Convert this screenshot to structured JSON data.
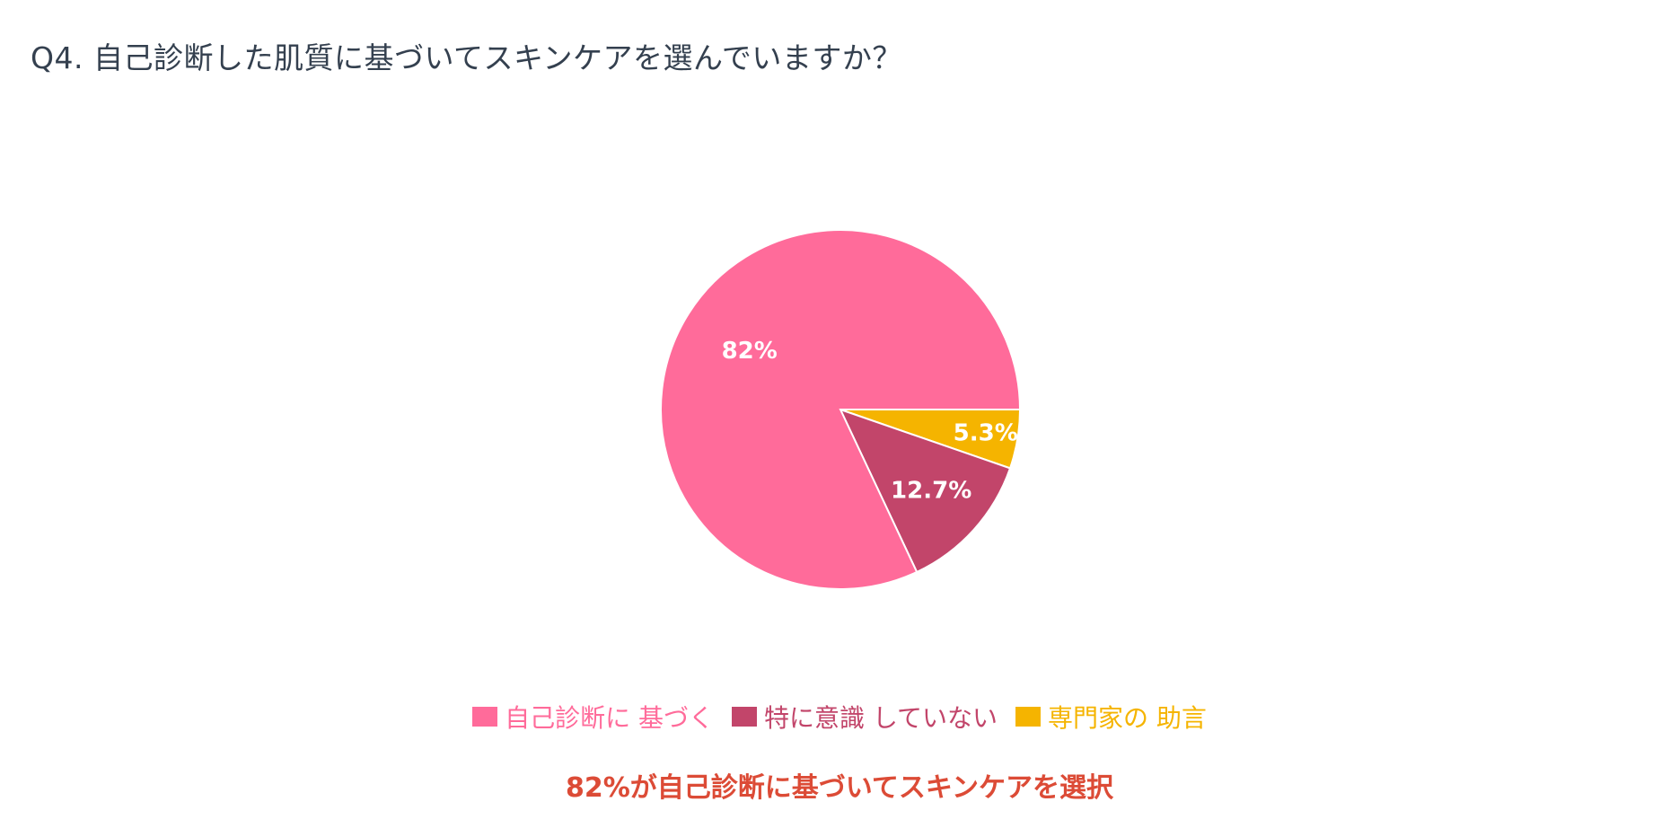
{
  "title": "Q4. 自己診断した肌質に基づいてスキンケアを選んでいますか？",
  "summary": "82%が自己診断に基づいてスキンケアを選択",
  "colors": {
    "title": "#34404f",
    "summary": "#dc4b36",
    "slice_border": "#ffffff"
  },
  "chart_data": {
    "type": "pie",
    "title": "Q4. 自己診断した肌質に基づいてスキンケアを選んでいますか？",
    "legend_position": "bottom",
    "slices": [
      {
        "label": "自己診断に 基づく",
        "value": 82,
        "display": "82%",
        "color": "#ff6b9a"
      },
      {
        "label": "特に意識 していない",
        "value": 12.7,
        "display": "12.7%",
        "color": "#c2456a"
      },
      {
        "label": "専門家の 助言",
        "value": 5.3,
        "display": "5.3%",
        "color": "#f5b400"
      }
    ]
  }
}
